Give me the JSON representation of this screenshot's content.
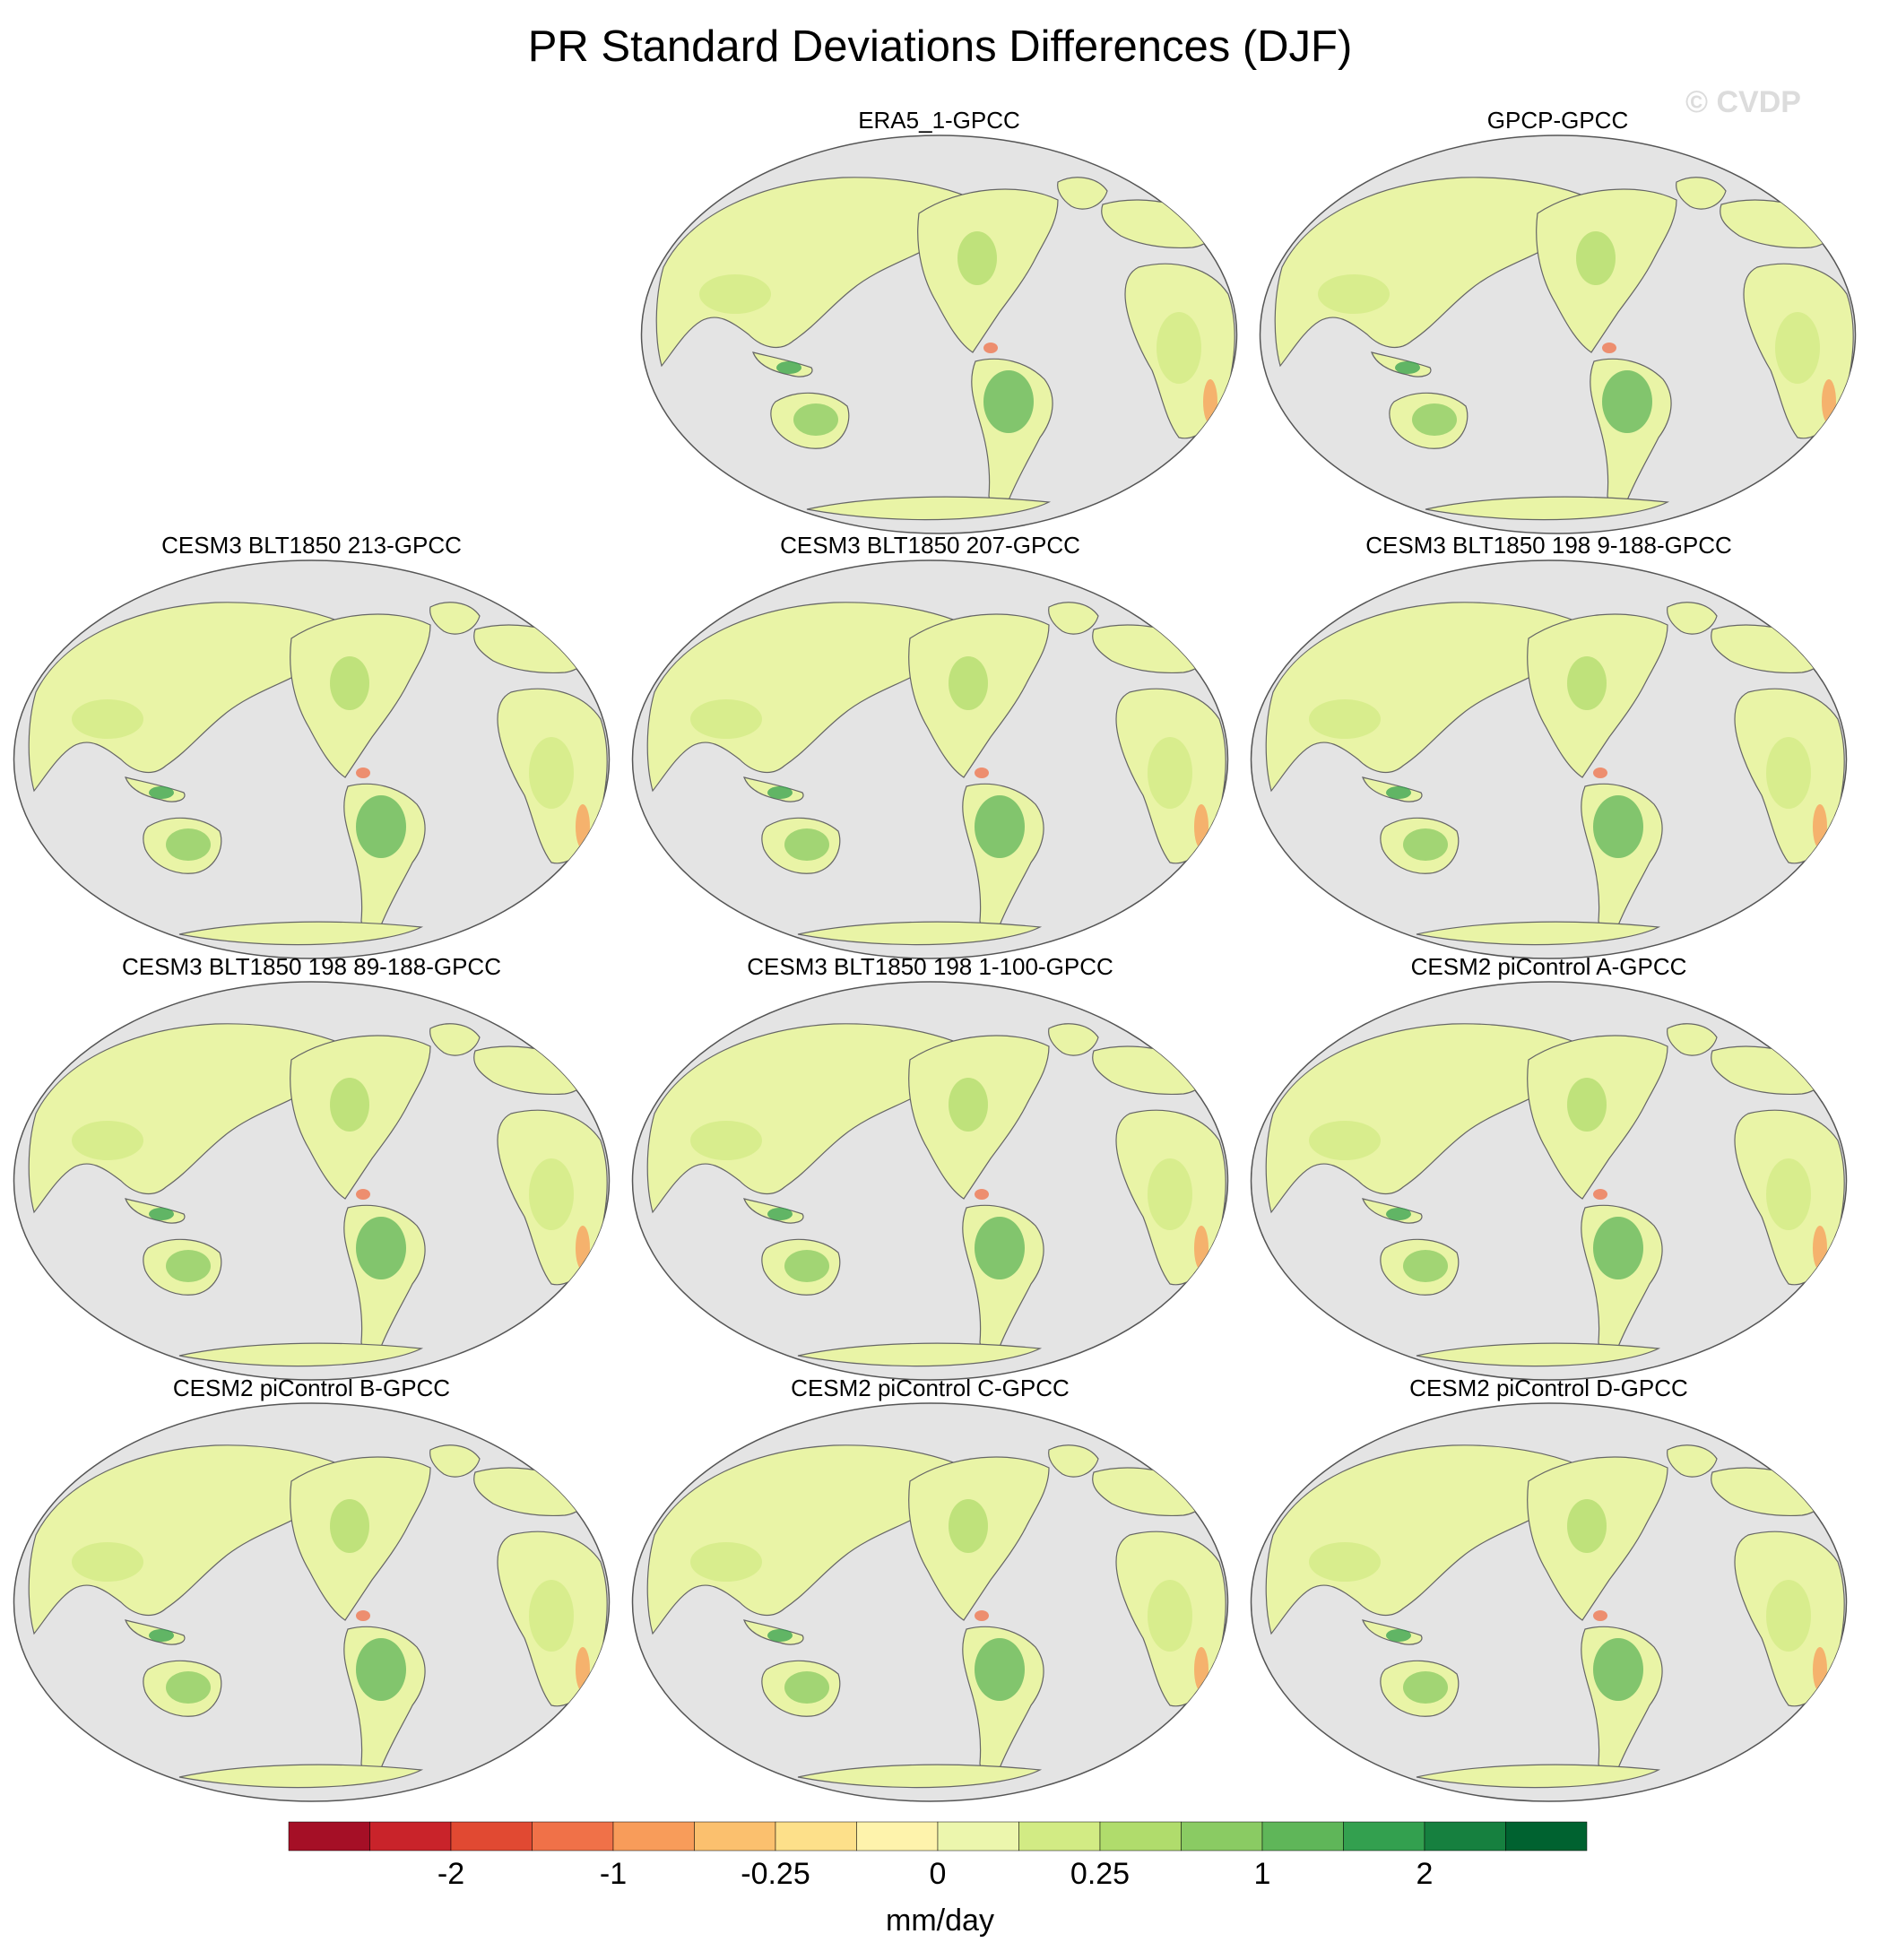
{
  "title": "PR Standard Deviations Differences (DJF)",
  "watermark": "© CVDP",
  "panels": [
    {
      "title": "ERA5_1-GPCC"
    },
    {
      "title": "GPCP-GPCC"
    },
    {
      "title": "CESM3 BLT1850 213-GPCC"
    },
    {
      "title": "CESM3 BLT1850 207-GPCC"
    },
    {
      "title": "CESM3 BLT1850 198 9-188-GPCC"
    },
    {
      "title": "CESM3 BLT1850 198 89-188-GPCC"
    },
    {
      "title": "CESM3 BLT1850 198 1-100-GPCC"
    },
    {
      "title": "CESM2 piControl A-GPCC"
    },
    {
      "title": "CESM2 piControl B-GPCC"
    },
    {
      "title": "CESM2 piControl C-GPCC"
    },
    {
      "title": "CESM2 piControl D-GPCC"
    }
  ],
  "colorbar": {
    "unit": "mm/day",
    "colors": [
      "#a50f26",
      "#c9232a",
      "#e14932",
      "#f07148",
      "#f89c5a",
      "#fbc06e",
      "#fde08a",
      "#fef3ac",
      "#ecf6ad",
      "#d2eb84",
      "#b0dc6c",
      "#8acb63",
      "#5fb659",
      "#33a04f",
      "#16803f",
      "#006230"
    ],
    "ticks": [
      "-2",
      "-1",
      "-0.25",
      "0",
      "0.25",
      "1",
      "2"
    ]
  },
  "ocean_color": "#e4e4e4",
  "land_color": "#e9f4a6"
}
